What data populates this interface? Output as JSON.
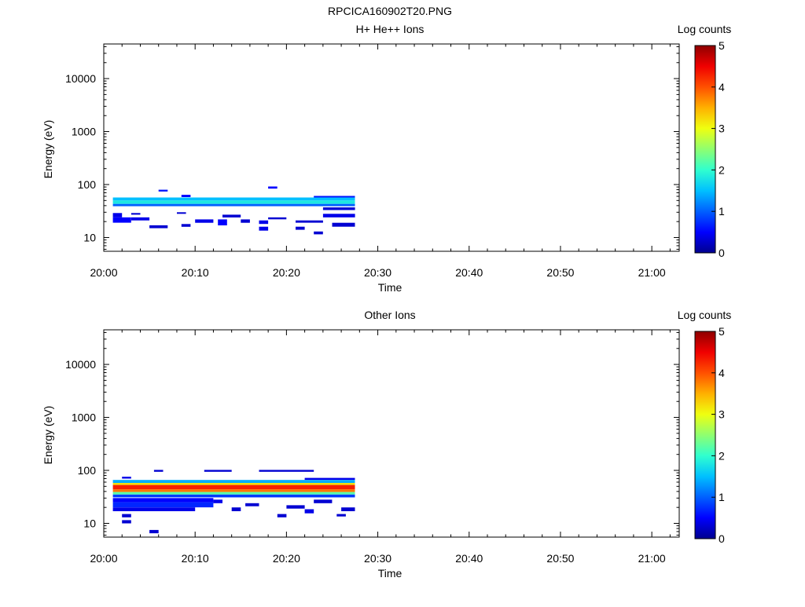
{
  "figure": {
    "title": "RPCICA160902T20.PNG"
  },
  "colorscale": [
    "#00008f",
    "#0000ff",
    "#0060ff",
    "#00c0ff",
    "#30ffcf",
    "#8fff70",
    "#efff10",
    "#ffb000",
    "#ff5000",
    "#f00000",
    "#8f0000"
  ],
  "chart_data": [
    {
      "type": "heatmap",
      "title": "H+ He++ Ions",
      "xlabel": "Time",
      "ylabel": "Energy (eV)",
      "x_tick_labels": [
        "20:00",
        "20:10",
        "20:20",
        "20:30",
        "20:40",
        "20:50",
        "21:00"
      ],
      "x_range_minutes": [
        0,
        63
      ],
      "y_scale": "log",
      "y_range": [
        5.5,
        45000
      ],
      "y_tick_labels": [
        "10",
        "100",
        "1000",
        "10000"
      ],
      "colorbar": {
        "label": "Log counts",
        "range": [
          0,
          5
        ],
        "tick_labels": [
          "0",
          "1",
          "2",
          "3",
          "4",
          "5"
        ]
      },
      "grid": false,
      "cells": [
        {
          "t0": 1,
          "t1": 27.5,
          "e0": 50,
          "e1": 57,
          "v": 1.5
        },
        {
          "t0": 1,
          "t1": 27.5,
          "e0": 43,
          "e1": 50,
          "v": 1.8
        },
        {
          "t0": 1,
          "t1": 27.5,
          "e0": 39,
          "e1": 43,
          "v": 1.0
        },
        {
          "t0": 6,
          "t1": 7,
          "e0": 74,
          "e1": 80,
          "v": 0.6
        },
        {
          "t0": 8.5,
          "t1": 9.5,
          "e0": 58,
          "e1": 64,
          "v": 0.5
        },
        {
          "t0": 18,
          "t1": 19,
          "e0": 84,
          "e1": 92,
          "v": 0.5
        },
        {
          "t0": 23,
          "t1": 27.5,
          "e0": 57,
          "e1": 61,
          "v": 0.6
        },
        {
          "t0": 1,
          "t1": 2,
          "e0": 24,
          "e1": 29,
          "v": 0.4
        },
        {
          "t0": 1,
          "t1": 3,
          "e0": 19,
          "e1": 24,
          "v": 0.5
        },
        {
          "t0": 3,
          "t1": 5,
          "e0": 21,
          "e1": 24,
          "v": 0.4
        },
        {
          "t0": 3,
          "t1": 4,
          "e0": 27,
          "e1": 29,
          "v": 0.3
        },
        {
          "t0": 5,
          "t1": 7,
          "e0": 15,
          "e1": 17,
          "v": 0.3
        },
        {
          "t0": 8,
          "t1": 9,
          "e0": 28,
          "e1": 30,
          "v": 0.3
        },
        {
          "t0": 8.5,
          "t1": 9.5,
          "e0": 16,
          "e1": 18,
          "v": 0.3
        },
        {
          "t0": 10,
          "t1": 12,
          "e0": 19,
          "e1": 22,
          "v": 0.4
        },
        {
          "t0": 12.5,
          "t1": 13.5,
          "e0": 17,
          "e1": 22,
          "v": 0.5
        },
        {
          "t0": 13,
          "t1": 15,
          "e0": 24,
          "e1": 27,
          "v": 0.3
        },
        {
          "t0": 15,
          "t1": 16,
          "e0": 19,
          "e1": 22,
          "v": 0.3
        },
        {
          "t0": 17,
          "t1": 18,
          "e0": 18,
          "e1": 21,
          "v": 0.4
        },
        {
          "t0": 17,
          "t1": 18,
          "e0": 13.5,
          "e1": 16,
          "v": 0.4
        },
        {
          "t0": 18,
          "t1": 20,
          "e0": 22,
          "e1": 24,
          "v": 0.3
        },
        {
          "t0": 21,
          "t1": 22,
          "e0": 14,
          "e1": 16,
          "v": 0.3
        },
        {
          "t0": 21,
          "t1": 24,
          "e0": 19,
          "e1": 21,
          "v": 0.3
        },
        {
          "t0": 23,
          "t1": 24,
          "e0": 11.5,
          "e1": 13,
          "v": 0.3
        },
        {
          "t0": 24,
          "t1": 27.5,
          "e0": 24,
          "e1": 28,
          "v": 0.4
        },
        {
          "t0": 25,
          "t1": 27.5,
          "e0": 16,
          "e1": 19,
          "v": 0.3
        },
        {
          "t0": 24,
          "t1": 27.5,
          "e0": 33,
          "e1": 37,
          "v": 0.3
        }
      ]
    },
    {
      "type": "heatmap",
      "title": "Other Ions",
      "xlabel": "Time",
      "ylabel": "Energy (eV)",
      "x_tick_labels": [
        "20:00",
        "20:10",
        "20:20",
        "20:30",
        "20:40",
        "20:50",
        "21:00"
      ],
      "x_range_minutes": [
        0,
        63
      ],
      "y_scale": "log",
      "y_range": [
        5.5,
        45000
      ],
      "y_tick_labels": [
        "10",
        "100",
        "1000",
        "10000"
      ],
      "colorbar": {
        "label": "Log counts",
        "range": [
          0,
          5
        ],
        "tick_labels": [
          "0",
          "1",
          "2",
          "3",
          "4",
          "5"
        ]
      },
      "grid": false,
      "cells": [
        {
          "t0": 1,
          "t1": 27.5,
          "e0": 58,
          "e1": 66,
          "v": 1.4
        },
        {
          "t0": 1,
          "t1": 27.5,
          "e0": 53,
          "e1": 58,
          "v": 3.2
        },
        {
          "t0": 1,
          "t1": 27.5,
          "e0": 44,
          "e1": 53,
          "v": 4.3
        },
        {
          "t0": 1,
          "t1": 27.5,
          "e0": 39,
          "e1": 44,
          "v": 3.8
        },
        {
          "t0": 1,
          "t1": 27.5,
          "e0": 35,
          "e1": 39,
          "v": 2.2
        },
        {
          "t0": 1,
          "t1": 27.5,
          "e0": 31,
          "e1": 35,
          "v": 0.8
        },
        {
          "t0": 1,
          "t1": 12,
          "e0": 25,
          "e1": 30,
          "v": 0.5
        },
        {
          "t0": 1,
          "t1": 12,
          "e0": 20,
          "e1": 25,
          "v": 0.7
        },
        {
          "t0": 1,
          "t1": 10,
          "e0": 17,
          "e1": 20,
          "v": 0.4
        },
        {
          "t0": 2,
          "t1": 3,
          "e0": 13,
          "e1": 15,
          "v": 0.3
        },
        {
          "t0": 2,
          "t1": 3,
          "e0": 10,
          "e1": 11.5,
          "v": 0.3
        },
        {
          "t0": 5,
          "t1": 6,
          "e0": 6.5,
          "e1": 7.5,
          "v": 0.3
        },
        {
          "t0": 2,
          "t1": 3,
          "e0": 70,
          "e1": 76,
          "v": 0.4
        },
        {
          "t0": 5.5,
          "t1": 6.5,
          "e0": 94,
          "e1": 102,
          "v": 0.3
        },
        {
          "t0": 11,
          "t1": 14,
          "e0": 94,
          "e1": 102,
          "v": 0.3
        },
        {
          "t0": 17,
          "t1": 23,
          "e0": 94,
          "e1": 102,
          "v": 0.3
        },
        {
          "t0": 22,
          "t1": 27.5,
          "e0": 66,
          "e1": 72,
          "v": 0.4
        },
        {
          "t0": 12,
          "t1": 13,
          "e0": 24,
          "e1": 28,
          "v": 0.4
        },
        {
          "t0": 14,
          "t1": 15,
          "e0": 17,
          "e1": 20,
          "v": 0.3
        },
        {
          "t0": 15.5,
          "t1": 17,
          "e0": 21,
          "e1": 24,
          "v": 0.3
        },
        {
          "t0": 19,
          "t1": 20,
          "e0": 13,
          "e1": 15,
          "v": 0.3
        },
        {
          "t0": 20,
          "t1": 22,
          "e0": 19,
          "e1": 22,
          "v": 0.3
        },
        {
          "t0": 22,
          "t1": 23,
          "e0": 15.5,
          "e1": 18.5,
          "v": 0.4
        },
        {
          "t0": 23,
          "t1": 25,
          "e0": 24,
          "e1": 28,
          "v": 0.3
        },
        {
          "t0": 25.5,
          "t1": 26.5,
          "e0": 13.5,
          "e1": 15,
          "v": 0.3
        },
        {
          "t0": 26,
          "t1": 27.5,
          "e0": 17,
          "e1": 20,
          "v": 0.3
        }
      ]
    }
  ]
}
